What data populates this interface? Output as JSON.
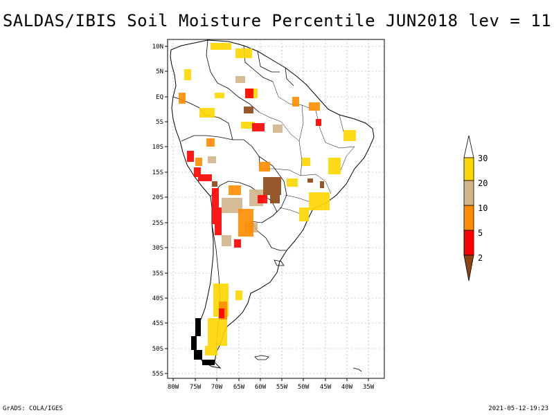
{
  "title": "SALDAS/IBIS Soil Moisture Percentile JUN2018 lev = 11",
  "map": {
    "lat_labels": [
      "10N",
      "5N",
      "EQ",
      "5S",
      "10S",
      "15S",
      "20S",
      "25S",
      "30S",
      "35S",
      "40S",
      "45S",
      "50S",
      "55S"
    ],
    "lon_labels": [
      "80W",
      "75W",
      "70W",
      "65W",
      "60W",
      "55W",
      "50W",
      "45W",
      "40W",
      "35W"
    ],
    "extent": {
      "lon_min": -81,
      "lon_max": -34,
      "lat_min": -56,
      "lat_max": 12
    }
  },
  "legend": {
    "labels": [
      "30",
      "20",
      "10",
      "5",
      "2"
    ],
    "colors": {
      "above_30": "#ffffff",
      "20_30": "#ffd700",
      "10_20": "#d2b48c",
      "5_10": "#ff8c00",
      "2_5": "#ff0000",
      "below_2": "#8b4513"
    }
  },
  "footer": {
    "left": "GrADS: COLA/IGES",
    "right": "2021-05-12-19:23"
  }
}
